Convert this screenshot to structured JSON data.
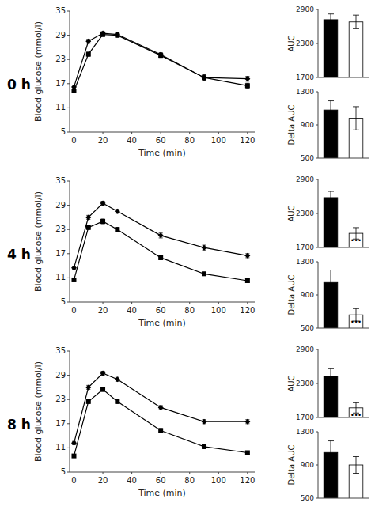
{
  "chart_data": [
    {
      "type": "line",
      "title": "0 h",
      "x": [
        0,
        10,
        20,
        30,
        60,
        90,
        120
      ],
      "xlim": [
        -3,
        125
      ],
      "xticks": [
        0,
        20,
        40,
        60,
        80,
        100,
        120
      ],
      "ylim": [
        5,
        35
      ],
      "yticks": [
        5,
        11,
        17,
        23,
        29,
        35
      ],
      "xlabel": "Time (min)",
      "ylabel": "Blood glucose (mmol/l)",
      "series": [
        {
          "marker": "diamond",
          "color": "#000000",
          "values": [
            16.2,
            27.5,
            29.5,
            29.2,
            24.2,
            18.5,
            18.2
          ],
          "errors": [
            0.4,
            0.5,
            0.4,
            0.4,
            0.5,
            0.7,
            0.6
          ]
        },
        {
          "marker": "square",
          "color": "#000000",
          "values": [
            15.2,
            24.3,
            29.2,
            29.0,
            24.0,
            18.5,
            16.5
          ],
          "errors": [
            0.4,
            0.5,
            0.5,
            0.5,
            0.5,
            0.6,
            0.6
          ]
        }
      ]
    },
    {
      "type": "bar",
      "categories": [
        null,
        null
      ],
      "values": [
        2720,
        2680
      ],
      "errors": [
        100,
        120
      ],
      "colors": [
        "#000000",
        "#ffffff"
      ],
      "ylim": [
        1700,
        2900
      ],
      "yticks": [
        1700,
        2300,
        2900
      ],
      "ylabel": "AUC"
    },
    {
      "type": "bar",
      "categories": [
        null,
        null
      ],
      "values": [
        1080,
        980
      ],
      "errors": [
        110,
        140
      ],
      "colors": [
        "#000000",
        "#ffffff"
      ],
      "ylim": [
        500,
        1300
      ],
      "yticks": [
        500,
        900,
        1300
      ],
      "ylabel": "Delta AUC"
    },
    {
      "type": "line",
      "title": "4 h",
      "x": [
        0,
        10,
        20,
        30,
        60,
        90,
        120
      ],
      "xlim": [
        -3,
        125
      ],
      "xticks": [
        0,
        20,
        40,
        60,
        80,
        100,
        120
      ],
      "ylim": [
        5,
        35
      ],
      "yticks": [
        5,
        11,
        17,
        23,
        29,
        35
      ],
      "xlabel": "Time (min)",
      "ylabel": "Blood glucose (mmol/l)",
      "series": [
        {
          "marker": "diamond",
          "color": "#000000",
          "values": [
            13.5,
            26.0,
            29.5,
            27.5,
            21.5,
            18.5,
            16.5
          ],
          "errors": [
            0.4,
            0.5,
            0.5,
            0.5,
            0.6,
            0.6,
            0.5
          ]
        },
        {
          "marker": "square",
          "color": "#000000",
          "values": [
            10.5,
            23.5,
            25.0,
            23.0,
            16.0,
            12.0,
            10.3
          ],
          "errors": [
            0.4,
            0.5,
            0.6,
            0.5,
            0.5,
            0.4,
            0.4
          ]
        }
      ]
    },
    {
      "type": "bar",
      "categories": [
        null,
        null
      ],
      "values": [
        2580,
        1950
      ],
      "errors": [
        110,
        100
      ],
      "colors": [
        "#000000",
        "#ffffff"
      ],
      "ylim": [
        1700,
        2900
      ],
      "yticks": [
        1700,
        2300,
        2900
      ],
      "ylabel": "AUC",
      "annotations": [
        {
          "text": "•••",
          "x": 1
        }
      ]
    },
    {
      "type": "bar",
      "categories": [
        null,
        null
      ],
      "values": [
        1050,
        660
      ],
      "errors": [
        150,
        75
      ],
      "colors": [
        "#000000",
        "#ffffff"
      ],
      "ylim": [
        500,
        1300
      ],
      "yticks": [
        500,
        900,
        1300
      ],
      "ylabel": "Delta AUC",
      "annotations": [
        {
          "text": "•••",
          "x": 1
        }
      ]
    },
    {
      "type": "line",
      "title": "8 h",
      "x": [
        0,
        10,
        20,
        30,
        60,
        90,
        120
      ],
      "xlim": [
        -3,
        125
      ],
      "xticks": [
        0,
        20,
        40,
        60,
        80,
        100,
        120
      ],
      "ylim": [
        5,
        35
      ],
      "yticks": [
        5,
        11,
        17,
        23,
        29,
        35
      ],
      "xlabel": "Time (min)",
      "ylabel": "Blood glucose (mmol/l)",
      "series": [
        {
          "marker": "diamond",
          "color": "#000000",
          "values": [
            12.2,
            26.0,
            29.5,
            28.0,
            21.0,
            17.5,
            17.5
          ],
          "errors": [
            0.4,
            0.5,
            0.5,
            0.5,
            0.5,
            0.5,
            0.5
          ]
        },
        {
          "marker": "square",
          "color": "#000000",
          "values": [
            9.0,
            22.5,
            25.5,
            22.5,
            15.3,
            11.3,
            9.8
          ],
          "errors": [
            0.3,
            0.5,
            0.5,
            0.5,
            0.5,
            0.5,
            0.4
          ]
        }
      ]
    },
    {
      "type": "bar",
      "categories": [
        null,
        null
      ],
      "values": [
        2430,
        1870
      ],
      "errors": [
        130,
        90
      ],
      "colors": [
        "#000000",
        "#ffffff"
      ],
      "ylim": [
        1700,
        2900
      ],
      "yticks": [
        1700,
        2300,
        2900
      ],
      "ylabel": "AUC",
      "annotations": [
        {
          "text": "•••",
          "x": 1
        }
      ]
    },
    {
      "type": "bar",
      "categories": [
        null,
        null
      ],
      "values": [
        1050,
        900
      ],
      "errors": [
        140,
        100
      ],
      "colors": [
        "#000000",
        "#ffffff"
      ],
      "ylim": [
        500,
        1300
      ],
      "yticks": [
        500,
        900,
        1300
      ],
      "ylabel": "Delta AUC"
    }
  ]
}
